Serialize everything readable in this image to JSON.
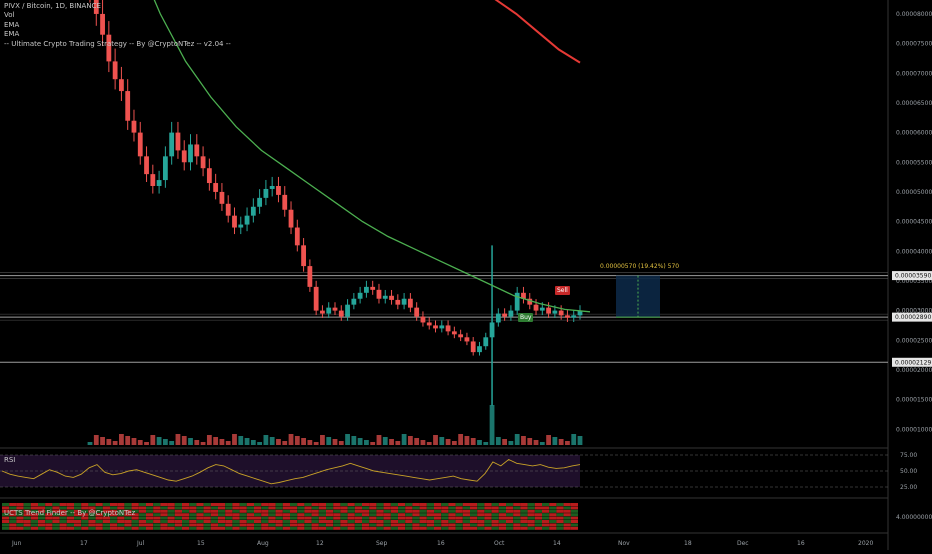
{
  "legend": {
    "symbol": "PIVX / Bitcoin, 1D, BINANCE",
    "lines": [
      "Vol",
      "EMA",
      "EMA",
      "-- Ultimate Crypto Trading Strategy -- By @CryptoNTez -- v2.04 --"
    ]
  },
  "rsi_title": "RSI",
  "ucts_title": "UCTS Trend Finder -- By @CryptoNTez",
  "measure_label": "0.00000570 (19.42%) 570",
  "signals": {
    "buy": "Buy",
    "sell": "Sell"
  },
  "colors": {
    "up": "#26a69a",
    "down": "#ef5350",
    "ema_fast": "#4caf50",
    "ema_slow": "#e53935",
    "rsi": "#c9a227",
    "rsi_bg": "#1e0f2a",
    "hline": "#9e9e9e",
    "grid": "#151515"
  },
  "chart_data": {
    "type": "candlestick",
    "price_axis": {
      "ticks": [
        "0.00008000",
        "0.00007500",
        "0.00007000",
        "0.00006500",
        "0.00006000",
        "0.00005500",
        "0.00005000",
        "0.00004500",
        "0.00004000",
        "0.00003500",
        "0.00003000",
        "0.00002500",
        "0.00002000",
        "0.00001500",
        "0.00001000"
      ],
      "range": [
        6e-06,
        8.1e-05
      ]
    },
    "x_labels": [
      "Jun",
      "17",
      "Jul",
      "15",
      "Aug",
      "12",
      "Sep",
      "16",
      "Oct",
      "14",
      "Nov",
      "18",
      "Dec",
      "16",
      "2020"
    ],
    "horizontal_lines": [
      {
        "value": 3.59e-05,
        "label": "0.00003590"
      },
      {
        "value": 2.89e-05,
        "label": "0.00002890"
      },
      {
        "value": 2.129e-05,
        "label": "0.00002129"
      }
    ],
    "candles_close": [
      8.4e-05,
      8e-05,
      7.65e-05,
      7.2e-05,
      6.9e-05,
      6.7e-05,
      6.2e-05,
      6e-05,
      5.6e-05,
      5.3e-05,
      5.1e-05,
      5.2e-05,
      5.6e-05,
      6e-05,
      5.7e-05,
      5.5e-05,
      5.8e-05,
      5.6e-05,
      5.4e-05,
      5.15e-05,
      5e-05,
      4.8e-05,
      4.6e-05,
      4.4e-05,
      4.45e-05,
      4.6e-05,
      4.75e-05,
      4.9e-05,
      5.05e-05,
      5.1e-05,
      4.95e-05,
      4.7e-05,
      4.4e-05,
      4.1e-05,
      3.75e-05,
      3.4e-05,
      3e-05,
      2.95e-05,
      3.05e-05,
      3e-05,
      2.9e-05,
      3.1e-05,
      3.2e-05,
      3.3e-05,
      3.4e-05,
      3.35e-05,
      3.2e-05,
      3.25e-05,
      3.18e-05,
      3.1e-05,
      3.2e-05,
      3.05e-05,
      2.9e-05,
      2.8e-05,
      2.75e-05,
      2.7e-05,
      2.75e-05,
      2.65e-05,
      2.6e-05,
      2.55e-05,
      2.48e-05,
      2.3e-05,
      2.4e-05,
      2.55e-05,
      2.8e-05,
      2.95e-05,
      2.9e-05,
      3e-05,
      3.3e-05,
      3.2e-05,
      3.1e-05,
      3e-05,
      3.05e-05,
      2.95e-05,
      3e-05,
      2.92e-05,
      2.88e-05,
      2.92e-05,
      3e-05
    ],
    "ema_fast": [
      9e-05,
      8e-05,
      7.2e-05,
      6.6e-05,
      6.1e-05,
      5.7e-05,
      5.4e-05,
      5.1e-05,
      4.8e-05,
      4.5e-05,
      4.25e-05,
      4.05e-05,
      3.85e-05,
      3.65e-05,
      3.45e-05,
      3.25e-05,
      3.12e-05,
      3.02e-05,
      2.98e-05
    ],
    "ema_slow": [
      8.25e-05,
      8e-05,
      7.7e-05,
      7.4e-05,
      7.18e-05
    ],
    "volume_spike_index": 64,
    "rsi": {
      "levels": [
        "75.00",
        "50.00",
        "25.00"
      ],
      "values": [
        50,
        45,
        42,
        40,
        38,
        45,
        52,
        48,
        42,
        40,
        45,
        55,
        60,
        48,
        44,
        46,
        50,
        52,
        48,
        44,
        40,
        36,
        34,
        38,
        42,
        48,
        55,
        60,
        58,
        52,
        46,
        42,
        38,
        34,
        30,
        32,
        35,
        38,
        40,
        44,
        48,
        52,
        55,
        58,
        62,
        58,
        54,
        50,
        48,
        46,
        44,
        42,
        40,
        38,
        36,
        38,
        40,
        42,
        38,
        36,
        34,
        46,
        64,
        58,
        68,
        62,
        60,
        58,
        60,
        56,
        54,
        55,
        58,
        60
      ]
    },
    "ucts_axis_label": "4.00000000"
  }
}
